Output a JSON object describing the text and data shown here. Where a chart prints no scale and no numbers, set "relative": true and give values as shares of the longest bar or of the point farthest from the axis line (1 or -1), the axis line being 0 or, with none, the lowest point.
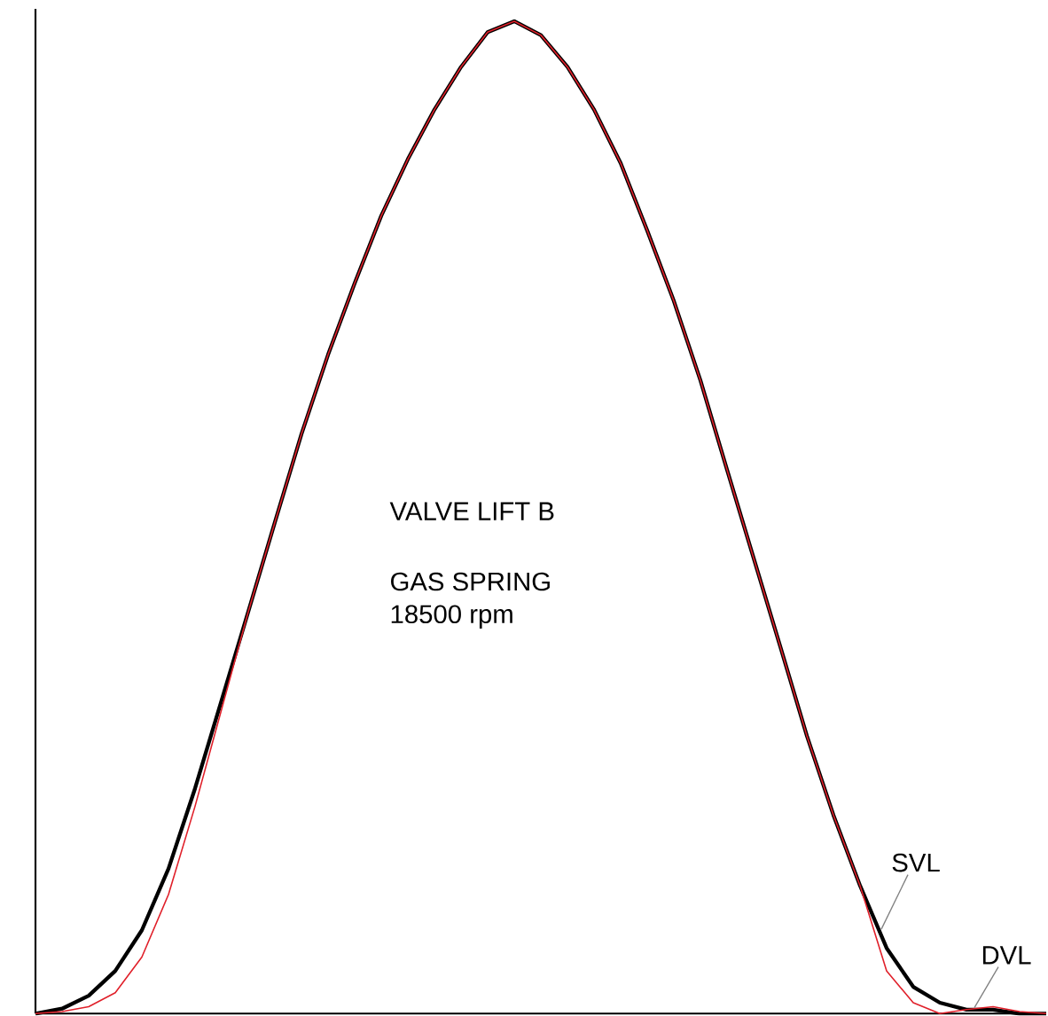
{
  "chart_data": {
    "type": "line",
    "relative": true,
    "marker": "none",
    "line_style": "solid",
    "categories": [
      null,
      null,
      null,
      null,
      null,
      null,
      null,
      null,
      null,
      null,
      null,
      null,
      null,
      null,
      null,
      null,
      null,
      null,
      null,
      null,
      null,
      null,
      null,
      null,
      null,
      null,
      null,
      null,
      null,
      null,
      null,
      null,
      null,
      null,
      null,
      null,
      null,
      null,
      null
    ],
    "series": [
      {
        "name": "SVL",
        "color": "#000000",
        "values": [
          0,
          0.005,
          0.018,
          0.043,
          0.084,
          0.146,
          0.227,
          0.316,
          0.405,
          0.495,
          0.584,
          0.664,
          0.736,
          0.804,
          0.861,
          0.911,
          0.954,
          0.989,
          1.0,
          0.986,
          0.954,
          0.911,
          0.857,
          0.789,
          0.718,
          0.638,
          0.548,
          0.459,
          0.37,
          0.28,
          0.2,
          0.129,
          0.066,
          0.027,
          0.011,
          0.004,
          0.004,
          0,
          0
        ]
      },
      {
        "name": "DVL",
        "color": "#e0202a",
        "values": [
          0,
          0.002,
          0.007,
          0.021,
          0.057,
          0.12,
          0.209,
          0.307,
          0.405,
          0.495,
          0.584,
          0.664,
          0.736,
          0.804,
          0.861,
          0.911,
          0.954,
          0.989,
          1.0,
          0.986,
          0.954,
          0.911,
          0.857,
          0.789,
          0.718,
          0.638,
          0.548,
          0.459,
          0.37,
          0.28,
          0.2,
          0.129,
          0.043,
          0.011,
          0,
          0.004,
          0.007,
          0.002,
          0
        ]
      }
    ],
    "annotations": [
      "VALVE LIFT B",
      "GAS SPRING",
      "18500 rpm"
    ]
  }
}
